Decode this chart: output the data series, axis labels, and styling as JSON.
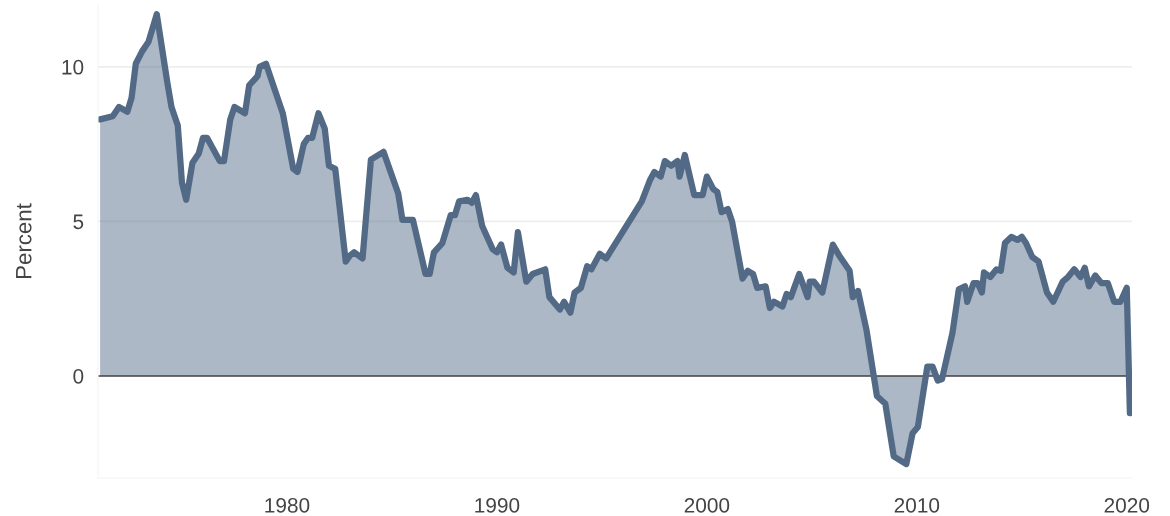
{
  "chart_data": {
    "type": "area",
    "ylabel": "Percent",
    "x": [
      1971.1,
      1971.7,
      1972.0,
      1972.4,
      1972.6,
      1972.8,
      1973.1,
      1973.4,
      1973.8,
      1974.3,
      1974.5,
      1974.8,
      1975.0,
      1975.2,
      1975.5,
      1975.8,
      1976.0,
      1976.2,
      1976.8,
      1977.0,
      1977.3,
      1977.5,
      1978.0,
      1978.2,
      1978.6,
      1978.7,
      1979.0,
      1979.8,
      1980.3,
      1980.5,
      1980.8,
      1981.0,
      1981.2,
      1981.5,
      1981.8,
      1982.0,
      1982.3,
      1982.5,
      1982.8,
      1983.0,
      1983.2,
      1983.6,
      1984.0,
      1984.6,
      1985.3,
      1985.5,
      1986.0,
      1986.6,
      1986.8,
      1987.0,
      1987.4,
      1987.8,
      1988.0,
      1988.2,
      1988.6,
      1988.8,
      1989.0,
      1989.3,
      1989.8,
      1990.0,
      1990.2,
      1990.5,
      1990.8,
      1991.0,
      1991.4,
      1991.7,
      1992.3,
      1992.5,
      1993.0,
      1993.2,
      1993.5,
      1993.7,
      1994.0,
      1994.3,
      1994.5,
      1994.9,
      1995.2,
      1996.9,
      1997.3,
      1997.5,
      1997.8,
      1998.0,
      1998.3,
      1998.6,
      1998.7,
      1998.95,
      1999.4,
      1999.8,
      2000.0,
      2000.3,
      2000.5,
      2000.7,
      2001.0,
      2001.2,
      2001.7,
      2001.95,
      2002.2,
      2002.4,
      2002.8,
      2003.0,
      2003.2,
      2003.6,
      2003.8,
      2004.0,
      2004.4,
      2004.8,
      2004.9,
      2005.1,
      2005.5,
      2006.0,
      2006.3,
      2006.8,
      2006.95,
      2007.2,
      2007.6,
      2008.1,
      2008.5,
      2008.9,
      2009.5,
      2009.8,
      2010.05,
      2010.5,
      2010.75,
      2011.0,
      2011.2,
      2011.7,
      2012.0,
      2012.3,
      2012.4,
      2012.7,
      2012.9,
      2013.1,
      2013.2,
      2013.5,
      2013.8,
      2014.0,
      2014.2,
      2014.5,
      2014.8,
      2015.0,
      2015.2,
      2015.5,
      2015.8,
      2016.2,
      2016.5,
      2016.95,
      2017.2,
      2017.5,
      2017.8,
      2018.0,
      2018.2,
      2018.5,
      2018.8,
      2019.1,
      2019.4,
      2019.7,
      2020.0,
      2020.15
    ],
    "series": [
      {
        "color": "#536a87",
        "values": [
          8.3,
          8.4,
          8.7,
          8.55,
          9.0,
          10.1,
          10.5,
          10.8,
          11.7,
          9.5,
          8.7,
          8.1,
          6.25,
          5.7,
          6.9,
          7.2,
          7.7,
          7.7,
          6.95,
          6.95,
          8.3,
          8.7,
          8.5,
          9.4,
          9.7,
          10.0,
          10.1,
          8.5,
          6.7,
          6.6,
          7.5,
          7.7,
          7.7,
          8.5,
          8.0,
          6.8,
          6.7,
          5.5,
          3.7,
          3.9,
          4.0,
          3.8,
          7.0,
          7.25,
          5.9,
          5.05,
          5.05,
          3.3,
          3.3,
          4.0,
          4.3,
          5.2,
          5.2,
          5.65,
          5.7,
          5.6,
          5.85,
          4.85,
          4.1,
          4.0,
          4.25,
          3.5,
          3.35,
          4.65,
          3.05,
          3.3,
          3.45,
          2.55,
          2.15,
          2.4,
          2.05,
          2.7,
          2.85,
          3.55,
          3.45,
          3.95,
          3.8,
          5.65,
          6.35,
          6.6,
          6.45,
          6.95,
          6.8,
          6.95,
          6.45,
          7.15,
          5.85,
          5.85,
          6.45,
          6.05,
          5.95,
          5.3,
          5.4,
          5.0,
          3.15,
          3.4,
          3.3,
          2.85,
          2.9,
          2.2,
          2.4,
          2.25,
          2.65,
          2.55,
          3.3,
          2.55,
          3.05,
          3.05,
          2.7,
          4.25,
          3.9,
          3.4,
          2.55,
          2.75,
          1.5,
          -0.65,
          -0.9,
          -2.6,
          -2.85,
          -1.85,
          -1.65,
          0.3,
          0.3,
          -0.15,
          -0.1,
          1.4,
          2.8,
          2.9,
          2.4,
          3.0,
          3.0,
          2.7,
          3.35,
          3.2,
          3.45,
          3.4,
          4.3,
          4.5,
          4.4,
          4.5,
          4.3,
          3.85,
          3.7,
          2.7,
          2.4,
          3.05,
          3.2,
          3.45,
          3.2,
          3.5,
          2.9,
          3.25,
          3.0,
          3.0,
          2.4,
          2.4,
          2.85,
          -1.2
        ]
      }
    ],
    "xlim": [
      1971,
      2020.25
    ],
    "xticks": [
      1980,
      1990,
      2000,
      2010,
      2020
    ],
    "ylim": [
      -3.3,
      12
    ],
    "yticks": [
      0,
      5,
      10
    ],
    "ref_lines": [
      {
        "axis": "y",
        "value": 0,
        "color": "#444444"
      }
    ],
    "grid": "y"
  }
}
